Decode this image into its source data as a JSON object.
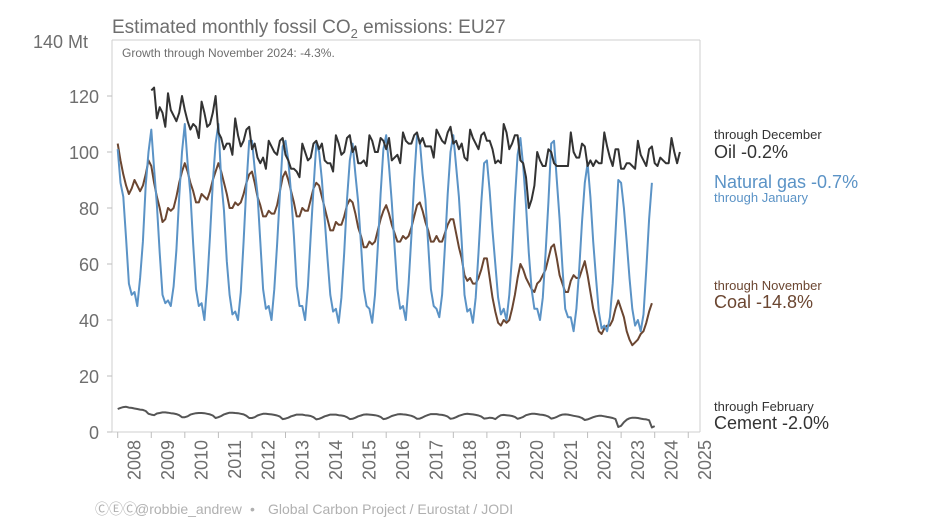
{
  "chart_data": {
    "type": "line",
    "title": "Estimated monthly fossil CO₂ emissions: EU27",
    "subtitle": "Growth through November 2024: -4.3%.",
    "y_unit_label": "140 Mt",
    "ylim": [
      0,
      140
    ],
    "yticks": [
      0,
      20,
      40,
      60,
      80,
      100,
      120
    ],
    "xlim": [
      2007.83,
      2025.35
    ],
    "xticks": [
      "2008",
      "2009",
      "2010",
      "2011",
      "2012",
      "2013",
      "2014",
      "2015",
      "2016",
      "2017",
      "2018",
      "2019",
      "2020",
      "2021",
      "2022",
      "2023",
      "2024",
      "2025"
    ],
    "grid": false,
    "series": [
      {
        "key": "oil",
        "name": "Oil",
        "label": "Oil -0.2%",
        "note": "through December",
        "color": "#333333",
        "start": [
          2009,
          1
        ],
        "values": [
          122,
          123,
          112,
          116,
          114,
          109,
          121,
          115,
          113,
          111,
          114,
          120,
          115,
          111,
          108,
          110,
          109,
          105,
          118,
          114,
          109,
          110,
          114,
          120,
          107,
          105,
          101,
          103,
          103,
          99,
          112,
          106,
          102,
          104,
          108,
          109,
          101,
          103,
          98,
          96,
          98,
          94,
          104,
          102,
          100,
          99,
          104,
          105,
          99,
          97,
          94,
          94,
          93,
          91,
          103,
          100,
          97,
          98,
          103,
          104,
          101,
          103,
          97,
          96,
          96,
          93,
          106,
          103,
          99,
          100,
          105,
          106,
          100,
          102,
          96,
          96,
          97,
          95,
          106,
          104,
          100,
          100,
          105,
          104,
          101,
          105,
          97,
          98,
          99,
          96,
          107,
          104,
          103,
          103,
          106,
          107,
          103,
          105,
          102,
          102,
          102,
          98,
          108,
          106,
          104,
          103,
          107,
          109,
          103,
          104,
          101,
          103,
          98,
          97,
          108,
          105,
          103,
          101,
          106,
          107,
          104,
          104,
          101,
          96,
          97,
          96,
          110,
          107,
          101,
          103,
          106,
          106,
          97,
          96,
          91,
          80,
          83,
          88,
          100,
          97,
          95,
          95,
          101,
          100,
          96,
          95,
          95,
          95,
          95,
          95,
          107,
          100,
          98,
          98,
          103,
          102,
          95,
          97,
          95,
          97,
          96,
          96,
          107,
          102,
          98,
          95,
          101,
          101,
          94,
          94,
          96,
          96,
          95,
          94,
          104,
          99,
          97,
          95,
          101,
          102,
          96,
          95,
          98,
          97,
          96,
          96,
          105,
          100,
          96,
          100
        ]
      },
      {
        "key": "gas",
        "name": "Natural gas",
        "label": "Natural gas -0.7%",
        "note": "through January",
        "color": "#5b93c6",
        "start": [
          2008,
          1
        ],
        "values": [
          101,
          89,
          84,
          69,
          53,
          49,
          50,
          45,
          55,
          68,
          88,
          100,
          108,
          94,
          81,
          64,
          49,
          46,
          47,
          45,
          52,
          65,
          84,
          100,
          110,
          96,
          85,
          67,
          51,
          45,
          46,
          40,
          53,
          70,
          89,
          103,
          110,
          90,
          79,
          61,
          49,
          42,
          43,
          40,
          50,
          68,
          88,
          104,
          104,
          94,
          85,
          68,
          51,
          44,
          45,
          40,
          51,
          67,
          85,
          102,
          104,
          97,
          85,
          70,
          52,
          45,
          45,
          40,
          52,
          70,
          87,
          103,
          100,
          90,
          76,
          62,
          49,
          43,
          44,
          39,
          48,
          64,
          83,
          97,
          103,
          92,
          82,
          67,
          51,
          45,
          44,
          39,
          49,
          66,
          85,
          101,
          106,
          95,
          82,
          66,
          51,
          44,
          45,
          40,
          53,
          70,
          90,
          106,
          104,
          92,
          83,
          67,
          51,
          45,
          44,
          41,
          49,
          66,
          85,
          100,
          106,
          95,
          84,
          68,
          49,
          43,
          44,
          39,
          48,
          64,
          82,
          96,
          97,
          86,
          72,
          60,
          48,
          42,
          44,
          40,
          49,
          63,
          83,
          99,
          105,
          95,
          81,
          64,
          51,
          44,
          44,
          40,
          48,
          64,
          82,
          103,
          104,
          90,
          76,
          59,
          44,
          41,
          41,
          36,
          44,
          58,
          75,
          89,
          96,
          84,
          68,
          55,
          43,
          37,
          38,
          36,
          41,
          53,
          71,
          90,
          89,
          80,
          68,
          55,
          44,
          38,
          40,
          36,
          42,
          58,
          76,
          89
        ]
      },
      {
        "key": "coal",
        "name": "Coal",
        "label": "Coal -14.8%",
        "note": "through November",
        "color": "#6b4631",
        "start": [
          2008,
          1
        ],
        "values": [
          103,
          97,
          92,
          88,
          85,
          87,
          90,
          88,
          86,
          88,
          92,
          97,
          95,
          89,
          84,
          80,
          75,
          76,
          80,
          79,
          80,
          84,
          89,
          93,
          96,
          93,
          89,
          86,
          82,
          82,
          85,
          84,
          83,
          86,
          90,
          93,
          96,
          93,
          89,
          85,
          80,
          80,
          82,
          81,
          82,
          85,
          89,
          92,
          93,
          89,
          84,
          81,
          77,
          77,
          79,
          78,
          78,
          81,
          86,
          91,
          93,
          90,
          86,
          82,
          77,
          77,
          80,
          79,
          79,
          83,
          87,
          89,
          88,
          84,
          80,
          76,
          72,
          72,
          75,
          74,
          74,
          77,
          81,
          83,
          82,
          78,
          73,
          70,
          66,
          66,
          68,
          67,
          68,
          72,
          76,
          79,
          81,
          78,
          74,
          71,
          68,
          68,
          70,
          69,
          70,
          73,
          77,
          81,
          82,
          79,
          75,
          72,
          68,
          68,
          70,
          68,
          68,
          71,
          74,
          76,
          76,
          71,
          66,
          62,
          56,
          54,
          55,
          53,
          53,
          55,
          58,
          62,
          62,
          55,
          48,
          43,
          39,
          38,
          40,
          39,
          40,
          44,
          49,
          55,
          60,
          58,
          55,
          53,
          51,
          50,
          53,
          54,
          56,
          58,
          62,
          66,
          67,
          62,
          56,
          53,
          50,
          50,
          54,
          56,
          55,
          55,
          58,
          61,
          56,
          50,
          44,
          40,
          36,
          35,
          37,
          38,
          38,
          40,
          44,
          47,
          44,
          41,
          36,
          33,
          31,
          32,
          33,
          35,
          36,
          39,
          43,
          46
        ]
      },
      {
        "key": "cement",
        "name": "Cement",
        "label": "Cement -2.0%",
        "note": "through February",
        "color": "#555555",
        "start": [
          2008,
          1
        ],
        "values": [
          8.2,
          8.6,
          8.9,
          9.0,
          8.7,
          8.6,
          8.4,
          8.2,
          8.0,
          7.9,
          7.5,
          6.5,
          6.2,
          6.0,
          6.6,
          6.8,
          7.0,
          7.0,
          6.9,
          6.7,
          6.6,
          6.4,
          6.0,
          5.3,
          5.3,
          5.6,
          6.2,
          6.5,
          6.7,
          6.8,
          6.8,
          6.7,
          6.5,
          6.3,
          5.9,
          5.0,
          5.3,
          5.7,
          6.3,
          6.6,
          6.9,
          6.9,
          6.8,
          6.7,
          6.5,
          6.3,
          5.8,
          5.0,
          5.0,
          5.3,
          5.9,
          6.2,
          6.5,
          6.5,
          6.4,
          6.3,
          6.1,
          5.9,
          5.5,
          4.6,
          4.8,
          5.1,
          5.6,
          5.9,
          6.2,
          6.2,
          6.2,
          6.0,
          5.9,
          5.7,
          5.3,
          4.5,
          4.7,
          5.1,
          5.6,
          5.9,
          6.2,
          6.2,
          6.2,
          6.0,
          5.9,
          5.7,
          5.3,
          4.6,
          4.7,
          5.1,
          5.6,
          5.9,
          6.2,
          6.3,
          6.2,
          6.1,
          6.0,
          5.8,
          5.4,
          4.6,
          4.8,
          5.2,
          5.7,
          6.0,
          6.3,
          6.4,
          6.3,
          6.2,
          6.0,
          5.8,
          5.4,
          4.7,
          4.8,
          5.2,
          5.7,
          6.1,
          6.4,
          6.4,
          6.4,
          6.2,
          6.1,
          5.9,
          5.5,
          4.7,
          4.9,
          5.3,
          5.8,
          6.1,
          6.4,
          6.5,
          6.4,
          6.3,
          6.1,
          5.9,
          5.5,
          4.8,
          4.9,
          5.1,
          5.0,
          4.6,
          5.4,
          6.0,
          6.1,
          6.0,
          5.9,
          5.7,
          5.4,
          4.7,
          5.0,
          5.4,
          6.0,
          6.3,
          6.5,
          6.5,
          6.4,
          6.2,
          6.1,
          5.9,
          5.5,
          4.8,
          5.0,
          5.4,
          5.9,
          6.2,
          6.3,
          6.2,
          6.0,
          5.8,
          5.6,
          5.4,
          5.0,
          4.3,
          4.5,
          4.9,
          5.3,
          5.6,
          5.8,
          5.8,
          5.6,
          5.4,
          5.2,
          5.0,
          4.6,
          1.8,
          2.2,
          3.5,
          4.4,
          4.9,
          5.1,
          5.1,
          5.0,
          4.8,
          4.6,
          4.5,
          4.2,
          1.6,
          2.1
        ]
      }
    ]
  },
  "footer": {
    "cc_icons": "ⒸⒺⒸ",
    "author": "@robbie_andrew",
    "bullet": "•",
    "sources": "Global Carbon Project / Eurostat / JODI"
  }
}
